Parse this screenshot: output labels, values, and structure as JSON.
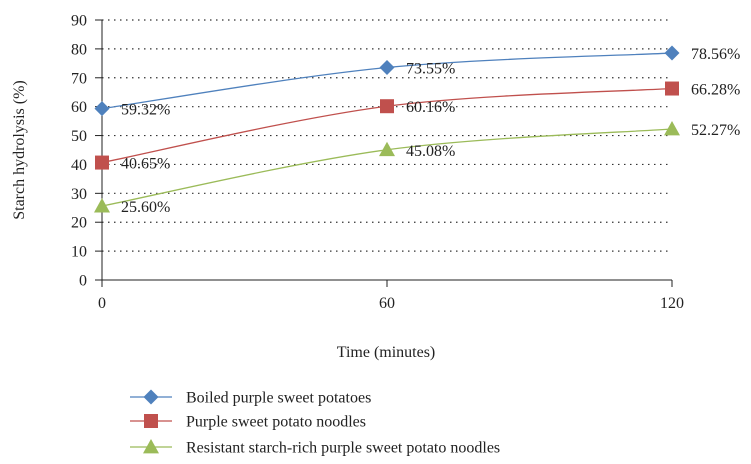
{
  "chart_data": {
    "type": "line",
    "title": "",
    "xlabel": "Time (minutes)",
    "ylabel": "Starch hydrolysis (%)",
    "x": [
      0,
      60,
      120
    ],
    "xlim": [
      0,
      120
    ],
    "ylim": [
      0,
      90
    ],
    "yticks": [
      0,
      10,
      20,
      30,
      40,
      50,
      60,
      70,
      80,
      90
    ],
    "xticks": [
      0,
      60,
      120
    ],
    "grid": "horizontal dotted",
    "legend_position": "bottom",
    "series": [
      {
        "name": "Boiled purple sweet potatoes",
        "values": [
          59.32,
          73.55,
          78.56
        ],
        "labels": [
          "59.32%",
          "73.55%",
          "78.56%"
        ],
        "color": "#4f81bd",
        "marker": "diamond"
      },
      {
        "name": "Purple sweet potato noodles",
        "values": [
          40.65,
          60.16,
          66.28
        ],
        "labels": [
          "40.65%",
          "60.16%",
          "66.28%"
        ],
        "color": "#c0504d",
        "marker": "square"
      },
      {
        "name": "Resistant starch-rich purple sweet potato noodles",
        "values": [
          25.6,
          45.08,
          52.27
        ],
        "labels": [
          "25.60%",
          "45.08%",
          "52.27%"
        ],
        "color": "#9bbb59",
        "marker": "triangle"
      }
    ]
  }
}
